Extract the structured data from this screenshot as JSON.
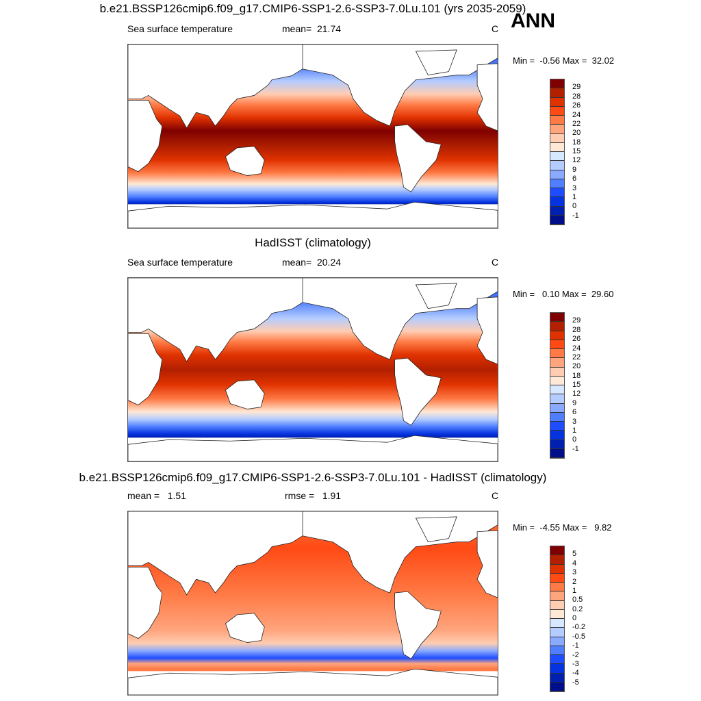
{
  "ann_label": "ANN",
  "colors": [
    "#7f0000",
    "#b22000",
    "#e03200",
    "#ff4a14",
    "#ff7a45",
    "#ffa57e",
    "#ffcdb2",
    "#ffe8d6",
    "#d6e8ff",
    "#b4ccff",
    "#8aaaff",
    "#4f7fff",
    "#1e4dff",
    "#0633e0",
    "#0020b0",
    "#000e8a"
  ],
  "panels": [
    {
      "title": "b.e21.BSSP126cmip6.f09_g17.CMIP6-SSP1-2.6-SSP3-7.0Lu.101 (yrs 2035-2059)",
      "left_label": "Sea surface temperature",
      "center_label": "mean=  21.74",
      "units": "C",
      "minmax": "Min =  -0.56 Max =  32.02",
      "levels": [
        "29",
        "28",
        "26",
        "24",
        "22",
        "20",
        "18",
        "15",
        "12",
        "9",
        "6",
        "3",
        "1",
        "0",
        "-1"
      ]
    },
    {
      "title": "HadISST (climatology)",
      "left_label": "Sea surface temperature",
      "center_label": "mean=  20.24",
      "units": "C",
      "minmax": "Min =   0.10 Max =  29.60",
      "levels": [
        "29",
        "28",
        "26",
        "24",
        "22",
        "20",
        "18",
        "15",
        "12",
        "9",
        "6",
        "3",
        "1",
        "0",
        "-1"
      ]
    },
    {
      "title": "b.e21.BSSP126cmip6.f09_g17.CMIP6-SSP1-2.6-SSP3-7.0Lu.101 - HadISST (climatology)",
      "left_label": "mean =   1.51",
      "center_label": "rmse =   1.91",
      "units": "C",
      "minmax": "Min =  -4.55 Max =   9.82",
      "levels": [
        "5",
        "4",
        "3",
        "2",
        "1",
        "0.5",
        "0.2",
        "0",
        "-0.2",
        "-0.5",
        "-1",
        "-2",
        "-3",
        "-4",
        "-5"
      ]
    }
  ]
}
